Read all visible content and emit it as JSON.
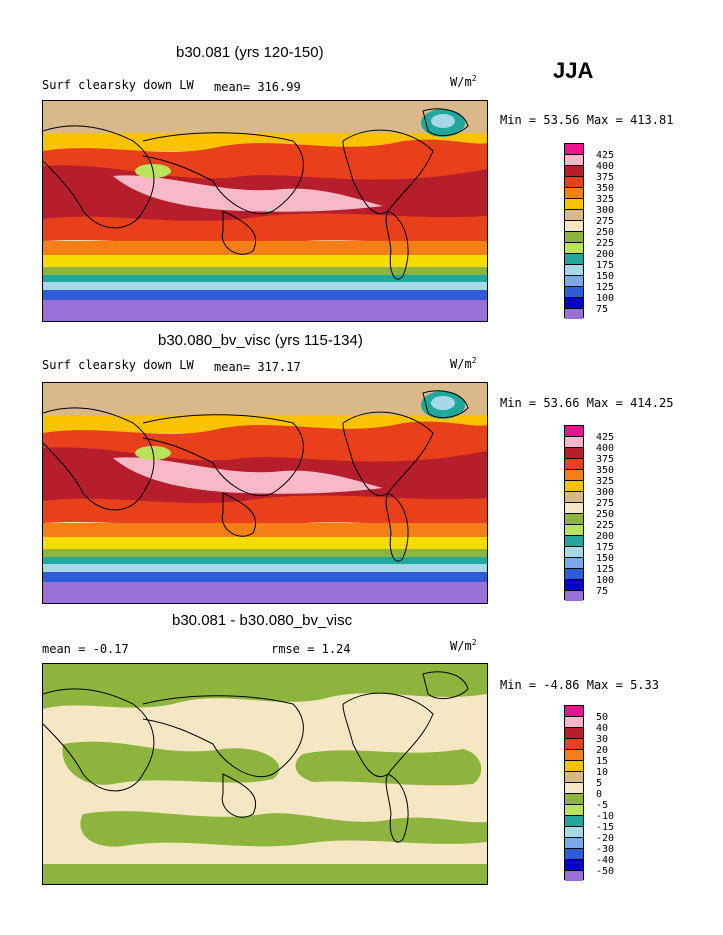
{
  "season": "JJA",
  "chart_data": [
    {
      "type": "heatmap",
      "title": "b30.081 (yrs 120-150)",
      "field": "Surf clearsky down LW",
      "mean_label": "mean=",
      "mean": "316.99",
      "units_main": "W/m",
      "units_exp": "2",
      "min_label": "Min =",
      "min": "53.56",
      "max_label": "Max =",
      "max": "413.81",
      "levels": [
        "425",
        "400",
        "375",
        "350",
        "325",
        "300",
        "275",
        "250",
        "225",
        "200",
        "175",
        "150",
        "125",
        "100",
        "75"
      ]
    },
    {
      "type": "heatmap",
      "title": "b30.080_bv_visc (yrs 115-134)",
      "field": "Surf clearsky down LW",
      "mean_label": "mean=",
      "mean": "317.17",
      "units_main": "W/m",
      "units_exp": "2",
      "min_label": "Min =",
      "min": "53.66",
      "max_label": "Max =",
      "max": "414.25",
      "levels": [
        "425",
        "400",
        "375",
        "350",
        "325",
        "300",
        "275",
        "250",
        "225",
        "200",
        "175",
        "150",
        "125",
        "100",
        "75"
      ]
    },
    {
      "type": "heatmap",
      "title": "b30.081 - b30.080_bv_visc",
      "mean_label": "mean =",
      "mean": "-0.17",
      "rmse_label": "rmse =",
      "rmse": "1.24",
      "units_main": "W/m",
      "units_exp": "2",
      "min_label": "Min =",
      "min": "-4.86",
      "max_label": "Max =",
      "max": "5.33",
      "levels": [
        "50",
        "40",
        "30",
        "20",
        "15",
        "10",
        "5",
        "0",
        "-5",
        "-10",
        "-15",
        "-20",
        "-30",
        "-40",
        "-50"
      ]
    }
  ],
  "colors": {
    "scale": [
      "#e8158c",
      "#f7b8c8",
      "#b61e2b",
      "#e8401a",
      "#f47f15",
      "#fbc200",
      "#f4dc00",
      "#d9b88a",
      "#f5e6c4",
      "#8db43c",
      "#b9e35a",
      "#1fa89b",
      "#a7d8e8",
      "#7aa8e8",
      "#2f5bd8",
      "#0000c8",
      "#9a6fd8"
    ],
    "land_line": "#000000"
  }
}
